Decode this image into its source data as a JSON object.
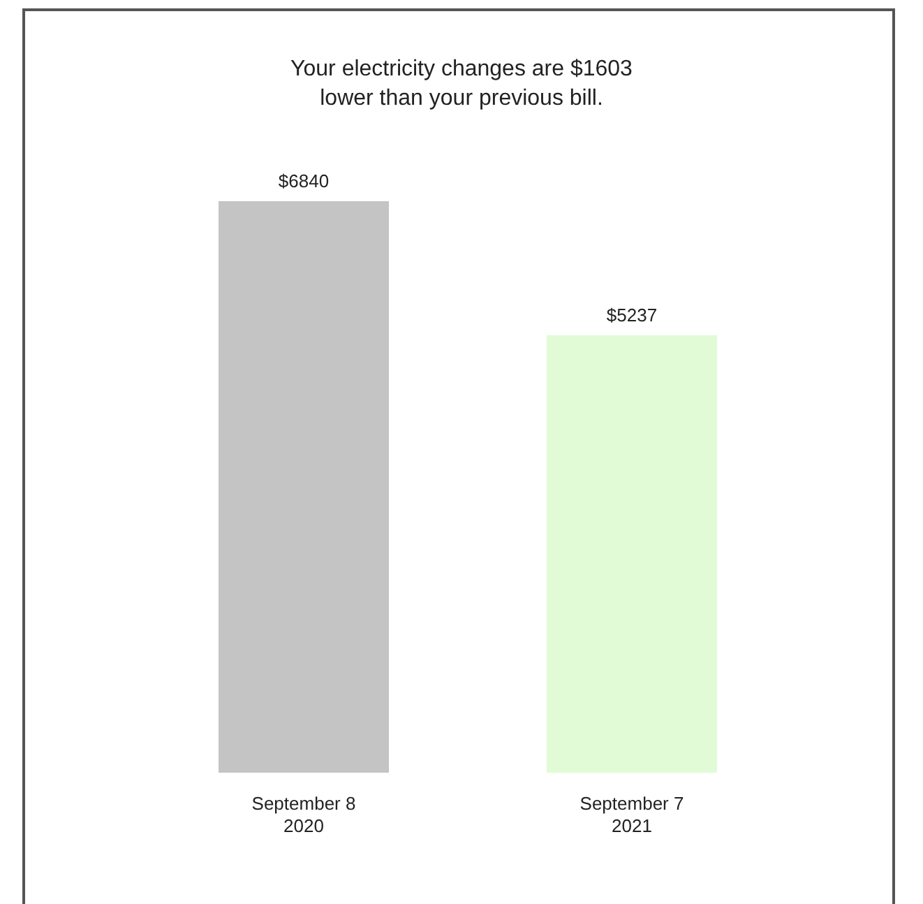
{
  "chart_data": {
    "type": "bar",
    "title": "Your electricity changes are $1603\nlower than your previous bill.",
    "categories": [
      "September 8\n2020",
      "September 7\n2021"
    ],
    "values": [
      6840,
      5237
    ],
    "colors": [
      "#c4c4c4",
      "#e2fbd7"
    ],
    "value_labels": [
      "$6840",
      "$5237"
    ]
  }
}
